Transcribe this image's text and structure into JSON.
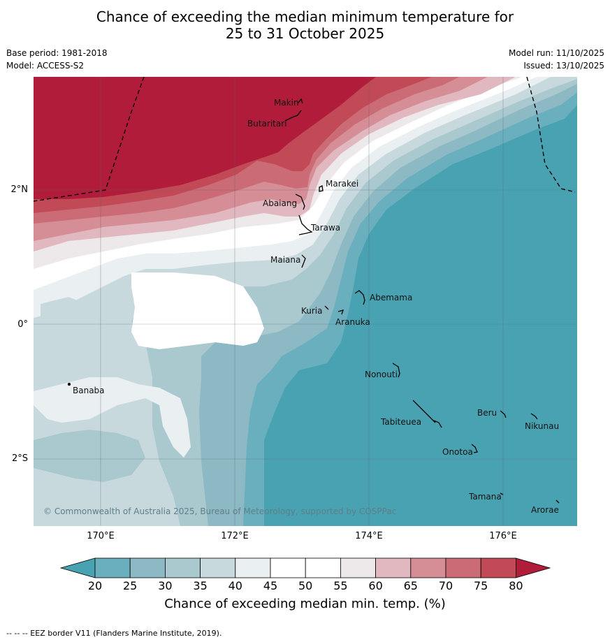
{
  "title_line1": "Chance of exceeding the median minimum temperature for",
  "title_line2": "25 to 31 October 2025",
  "base_period": "Base period: 1981-2018",
  "model": "Model: ACCESS-S2",
  "model_run": "Model run: 11/10/2025",
  "issued": "Issued: 13/10/2025",
  "map": {
    "lat_ticks": [
      "2°N",
      "0°",
      "2°S"
    ],
    "lon_ticks": [
      "170°E",
      "172°E",
      "174°E",
      "176°E"
    ],
    "places": [
      "Makin",
      "Butaritari",
      "Marakei",
      "Abaiang",
      "Tarawa",
      "Maiana",
      "Abemama",
      "Kuria",
      "Aranuka",
      "Nonouti",
      "Banaba",
      "Beru",
      "Nikunau",
      "Tabiteuea",
      "Onotoa",
      "Tamana",
      "Arorae"
    ],
    "copyright": "© Commonwealth of Australia 2025, Bureau of Meteorology, supported by COSPPac"
  },
  "colorbar": {
    "labels": [
      "20",
      "25",
      "30",
      "35",
      "40",
      "45",
      "50",
      "55",
      "60",
      "65",
      "70",
      "75",
      "80"
    ],
    "colors": [
      "#48a2b2",
      "#6aafbe",
      "#8db9c5",
      "#a9c9cf",
      "#c8d9de",
      "#eaeff2",
      "#ffffff",
      "#ffffff",
      "#ede8ea",
      "#e1b8bf",
      "#d58d96",
      "#cb6b76",
      "#c24956",
      "#b01c3a"
    ],
    "title": "Chance of exceeding median min. temp. (%)"
  },
  "footer": "--  --  -- EEZ border V11 (Flanders Marine Institute, 2019)."
}
